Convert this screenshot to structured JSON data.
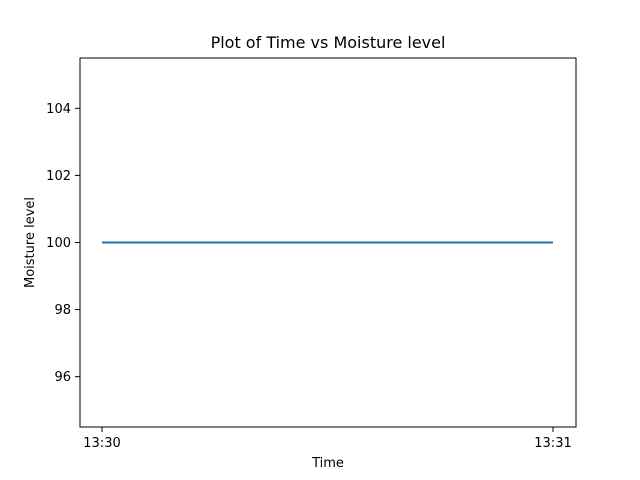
{
  "chart_data": {
    "type": "line",
    "title": "Plot of Time vs Moisture level",
    "xlabel": "Time",
    "ylabel": "Moisture level",
    "x": [
      "13:30",
      "13:31"
    ],
    "series": [
      {
        "values": [
          100,
          100
        ],
        "color": "#1f77b4"
      }
    ],
    "xticks": [
      "13:30",
      "13:31"
    ],
    "yticks": [
      96,
      98,
      100,
      102,
      104
    ],
    "ylim": [
      94.5,
      105.5
    ],
    "grid": false,
    "legend": "none"
  }
}
